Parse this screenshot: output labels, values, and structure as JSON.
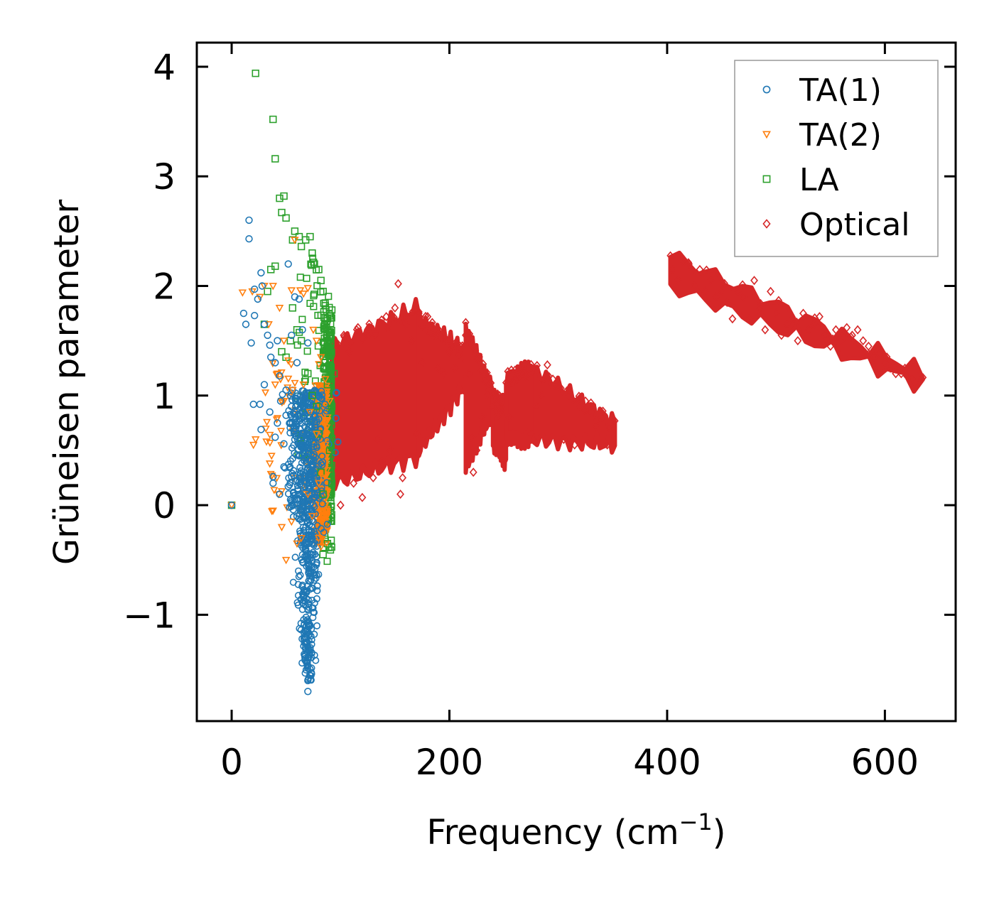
{
  "chart_data": {
    "type": "scatter",
    "title": "",
    "xlabel": "Frequency (cm",
    "xlabel_sup": "−1",
    "xlabel_suffix": ")",
    "ylabel": "Grüneisen parameter",
    "xlim": [
      -32,
      665
    ],
    "ylim": [
      -1.97,
      4.22
    ],
    "xticks": [
      0,
      200,
      400,
      600
    ],
    "xtick_labels": [
      "0",
      "200",
      "400",
      "600"
    ],
    "yticks": [
      -1,
      0,
      1,
      2,
      3,
      4
    ],
    "ytick_labels": [
      "−1",
      "0",
      "1",
      "2",
      "3",
      "4"
    ],
    "grid": false,
    "legend_position": "top-right",
    "series": [
      {
        "name": "TA(1)",
        "marker": "circle",
        "color": "#1f77b4",
        "points": [
          [
            0,
            0
          ],
          [
            16,
            2.6
          ],
          [
            16,
            2.43
          ],
          [
            21,
            1.97
          ],
          [
            21,
            1.73
          ],
          [
            24,
            1.88
          ],
          [
            27,
            2.12
          ],
          [
            28,
            2.0
          ],
          [
            30,
            1.65
          ],
          [
            33,
            1.55
          ],
          [
            35,
            1.46
          ],
          [
            11,
            1.75
          ],
          [
            13,
            1.65
          ],
          [
            18,
            1.48
          ],
          [
            40,
            1.3
          ],
          [
            44,
            1.18
          ],
          [
            55,
            1.55
          ],
          [
            58,
            1.9
          ],
          [
            62,
            1.88
          ],
          [
            52,
            2.2
          ],
          [
            30,
            1.1
          ],
          [
            26,
            0.92
          ],
          [
            27,
            0.69
          ],
          [
            20,
            0.92
          ],
          [
            35,
            0.85
          ],
          [
            38,
            0.26
          ],
          [
            38,
            0.2
          ],
          [
            42,
            0.75
          ],
          [
            48,
            0.56
          ],
          [
            52,
            0.17
          ],
          [
            60,
            0.05
          ],
          [
            66,
            0.03
          ],
          [
            45,
            0.95
          ],
          [
            50,
            1.05
          ],
          [
            55,
            0.9
          ],
          [
            42,
            1.5
          ],
          [
            36,
            1.35
          ],
          [
            60,
            1.3
          ],
          [
            65,
            1.6
          ],
          [
            70,
            1.48
          ],
          [
            68,
            -0.8
          ],
          [
            70,
            -1.6
          ],
          [
            70,
            -1.7
          ],
          [
            72,
            -1.3
          ],
          [
            68,
            -0.4
          ],
          [
            74,
            -0.2
          ],
          [
            66,
            0.3
          ],
          [
            62,
            0.45
          ],
          [
            58,
            0.6
          ],
          [
            75,
            0.4
          ],
          [
            72,
            0.8
          ],
          [
            64,
            0.95
          ],
          [
            56,
            0.75
          ],
          [
            48,
            0.35
          ],
          [
            44,
            0.1
          ],
          [
            60,
            -0.1
          ],
          [
            50,
            0.82
          ],
          [
            40,
            0.62
          ],
          [
            72,
            0.15
          ]
        ]
      },
      {
        "name": "TA(2)",
        "marker": "triangle",
        "color": "#ff7f0e",
        "points": [
          [
            0,
            0
          ],
          [
            10,
            1.94
          ],
          [
            19,
            1.95
          ],
          [
            26,
            1.9
          ],
          [
            30,
            2.0
          ],
          [
            34,
            1.65
          ],
          [
            38,
            2.0
          ],
          [
            44,
            1.8
          ],
          [
            48,
            1.5
          ],
          [
            52,
            1.32
          ],
          [
            55,
            1.96
          ],
          [
            58,
            2.42
          ],
          [
            63,
            1.96
          ],
          [
            66,
            1.93
          ],
          [
            70,
            1.98
          ],
          [
            75,
            1.6
          ],
          [
            78,
            1.5
          ],
          [
            20,
            0.55
          ],
          [
            22,
            0.6
          ],
          [
            32,
            0.58
          ],
          [
            35,
            0.38
          ],
          [
            37,
            0.27
          ],
          [
            38,
            -0.05
          ],
          [
            43,
            0.1
          ],
          [
            46,
            -0.2
          ],
          [
            50,
            -0.5
          ],
          [
            55,
            -0.15
          ],
          [
            60,
            -0.35
          ],
          [
            64,
            -0.3
          ],
          [
            70,
            0.1
          ],
          [
            74,
            -0.1
          ],
          [
            80,
            -0.3
          ],
          [
            82,
            -0.38
          ],
          [
            84,
            0.25
          ],
          [
            86,
            0.55
          ],
          [
            88,
            0.8
          ],
          [
            90,
            0.95
          ],
          [
            86,
            1.15
          ],
          [
            82,
            1.35
          ],
          [
            78,
            0.65
          ],
          [
            72,
            0.85
          ],
          [
            66,
            1.1
          ],
          [
            56,
            1.05
          ],
          [
            48,
            0.95
          ],
          [
            40,
            1.1
          ],
          [
            42,
            1.2
          ],
          [
            80,
            0.2
          ]
        ]
      },
      {
        "name": "LA",
        "marker": "square",
        "color": "#2ca02c",
        "points": [
          [
            0,
            0
          ],
          [
            22,
            3.94
          ],
          [
            38,
            3.52
          ],
          [
            40,
            3.16
          ],
          [
            44,
            2.8
          ],
          [
            48,
            2.82
          ],
          [
            46,
            2.67
          ],
          [
            50,
            2.62
          ],
          [
            56,
            2.42
          ],
          [
            58,
            2.5
          ],
          [
            62,
            2.45
          ],
          [
            64,
            2.36
          ],
          [
            68,
            2.42
          ],
          [
            72,
            2.45
          ],
          [
            74,
            2.3
          ],
          [
            76,
            2.2
          ],
          [
            80,
            2.15
          ],
          [
            82,
            2.05
          ],
          [
            84,
            1.95
          ],
          [
            86,
            1.82
          ],
          [
            88,
            1.7
          ],
          [
            90,
            1.58
          ],
          [
            92,
            1.78
          ],
          [
            40,
            2.18
          ],
          [
            36,
            2.15
          ],
          [
            33,
            1.95
          ],
          [
            30,
            1.65
          ],
          [
            56,
            1.8
          ],
          [
            54,
            1.5
          ],
          [
            50,
            1.35
          ],
          [
            46,
            1.4
          ],
          [
            60,
            1.6
          ],
          [
            64,
            1.5
          ],
          [
            70,
            1.2
          ],
          [
            74,
            1.0
          ],
          [
            78,
            0.9
          ],
          [
            80,
            0.65
          ],
          [
            82,
            0.3
          ],
          [
            84,
            -0.45
          ],
          [
            88,
            -0.35
          ],
          [
            90,
            0.5
          ],
          [
            92,
            0.2
          ],
          [
            88,
            1.1
          ],
          [
            86,
            1.3
          ],
          [
            90,
            1.4
          ],
          [
            92,
            0.9
          ],
          [
            94,
            1.2
          ],
          [
            84,
            0.1
          ]
        ]
      },
      {
        "name": "Optical",
        "marker": "diamond",
        "color": "#d62728",
        "points": [
          [
            100,
            0.0
          ],
          [
            103,
            1.55
          ],
          [
            108,
            1.4
          ],
          [
            112,
            0.2
          ],
          [
            116,
            1.62
          ],
          [
            120,
            0.07
          ],
          [
            125,
            1.55
          ],
          [
            130,
            0.25
          ],
          [
            134,
            0.6
          ],
          [
            138,
            0.4
          ],
          [
            142,
            1.72
          ],
          [
            146,
            0.5
          ],
          [
            150,
            1.8
          ],
          [
            153,
            2.02
          ],
          [
            155,
            0.1
          ],
          [
            157,
            0.25
          ],
          [
            160,
            1.65
          ],
          [
            165,
            1.5
          ],
          [
            170,
            0.65
          ],
          [
            175,
            1.3
          ],
          [
            180,
            1.72
          ],
          [
            185,
            1.55
          ],
          [
            190,
            1.25
          ],
          [
            195,
            1.2
          ],
          [
            200,
            1.4
          ],
          [
            205,
            1.25
          ],
          [
            210,
            1.45
          ],
          [
            215,
            1.55
          ],
          [
            218,
            1.2
          ],
          [
            220,
            0.62
          ],
          [
            222,
            0.3
          ],
          [
            225,
            0.5
          ],
          [
            230,
            0.8
          ],
          [
            235,
            1.0
          ],
          [
            240,
            0.9
          ],
          [
            245,
            0.82
          ],
          [
            250,
            0.4
          ],
          [
            255,
            0.8
          ],
          [
            260,
            1.15
          ],
          [
            265,
            1.25
          ],
          [
            270,
            1.22
          ],
          [
            275,
            0.65
          ],
          [
            280,
            0.9
          ],
          [
            285,
            1.0
          ],
          [
            290,
            1.28
          ],
          [
            295,
            1.15
          ],
          [
            300,
            1.08
          ],
          [
            305,
            0.6
          ],
          [
            310,
            1.0
          ],
          [
            315,
            0.55
          ],
          [
            320,
            0.9
          ],
          [
            325,
            0.95
          ],
          [
            330,
            0.85
          ],
          [
            335,
            0.72
          ],
          [
            340,
            0.8
          ],
          [
            345,
            0.55
          ],
          [
            350,
            0.7
          ],
          [
            405,
            2.15
          ],
          [
            410,
            2.05
          ],
          [
            415,
            2.22
          ],
          [
            420,
            2.2
          ],
          [
            425,
            2.0
          ],
          [
            430,
            2.15
          ],
          [
            435,
            1.95
          ],
          [
            440,
            2.05
          ],
          [
            445,
            1.9
          ],
          [
            450,
            1.95
          ],
          [
            455,
            1.85
          ],
          [
            460,
            1.7
          ],
          [
            465,
            1.95
          ],
          [
            470,
            1.9
          ],
          [
            475,
            1.7
          ],
          [
            480,
            2.05
          ],
          [
            485,
            1.8
          ],
          [
            490,
            1.6
          ],
          [
            495,
            1.95
          ],
          [
            500,
            1.75
          ],
          [
            505,
            1.55
          ],
          [
            510,
            1.65
          ],
          [
            515,
            1.7
          ],
          [
            520,
            1.5
          ],
          [
            525,
            1.75
          ],
          [
            530,
            1.6
          ],
          [
            535,
            1.65
          ],
          [
            540,
            1.72
          ],
          [
            545,
            1.55
          ],
          [
            550,
            1.45
          ],
          [
            555,
            1.6
          ],
          [
            560,
            1.5
          ],
          [
            565,
            1.62
          ],
          [
            570,
            1.55
          ],
          [
            575,
            1.6
          ],
          [
            580,
            1.5
          ],
          [
            585,
            1.45
          ],
          [
            590,
            1.35
          ],
          [
            595,
            1.38
          ],
          [
            600,
            1.3
          ],
          [
            605,
            1.25
          ],
          [
            610,
            1.2
          ],
          [
            615,
            1.2
          ],
          [
            620,
            1.18
          ],
          [
            625,
            1.15
          ],
          [
            632,
            1.13
          ]
        ]
      }
    ],
    "optical_bands": [
      {
        "xmin": 92,
        "xmax": 172,
        "ymin_start": 0.2,
        "ymin_end": 0.45,
        "ymax_start": 1.45,
        "ymax_end": 1.8
      },
      {
        "xmin": 172,
        "xmax": 215,
        "ymin_start": 0.5,
        "ymin_end": 1.1,
        "ymax_start": 1.7,
        "ymax_end": 1.4
      },
      {
        "xmin": 215,
        "xmax": 240,
        "ymin_start": 0.35,
        "ymin_end": 0.85,
        "ymax_start": 1.6,
        "ymax_end": 1.05
      },
      {
        "xmin": 240,
        "xmax": 252,
        "ymin_start": 0.55,
        "ymin_end": 0.4,
        "ymax_start": 1.0,
        "ymax_end": 0.9
      },
      {
        "xmin": 252,
        "xmax": 275,
        "ymin_start": 0.6,
        "ymin_end": 0.6,
        "ymax_start": 1.15,
        "ymax_end": 1.25
      },
      {
        "xmin": 275,
        "xmax": 352,
        "ymin_start": 0.6,
        "ymin_end": 0.55,
        "ymax_start": 1.25,
        "ymax_end": 0.75
      },
      {
        "xmin": 403,
        "xmax": 635,
        "ymin_start": 2.0,
        "ymin_end": 1.1,
        "ymax_start": 2.28,
        "ymax_end": 1.2
      }
    ]
  }
}
